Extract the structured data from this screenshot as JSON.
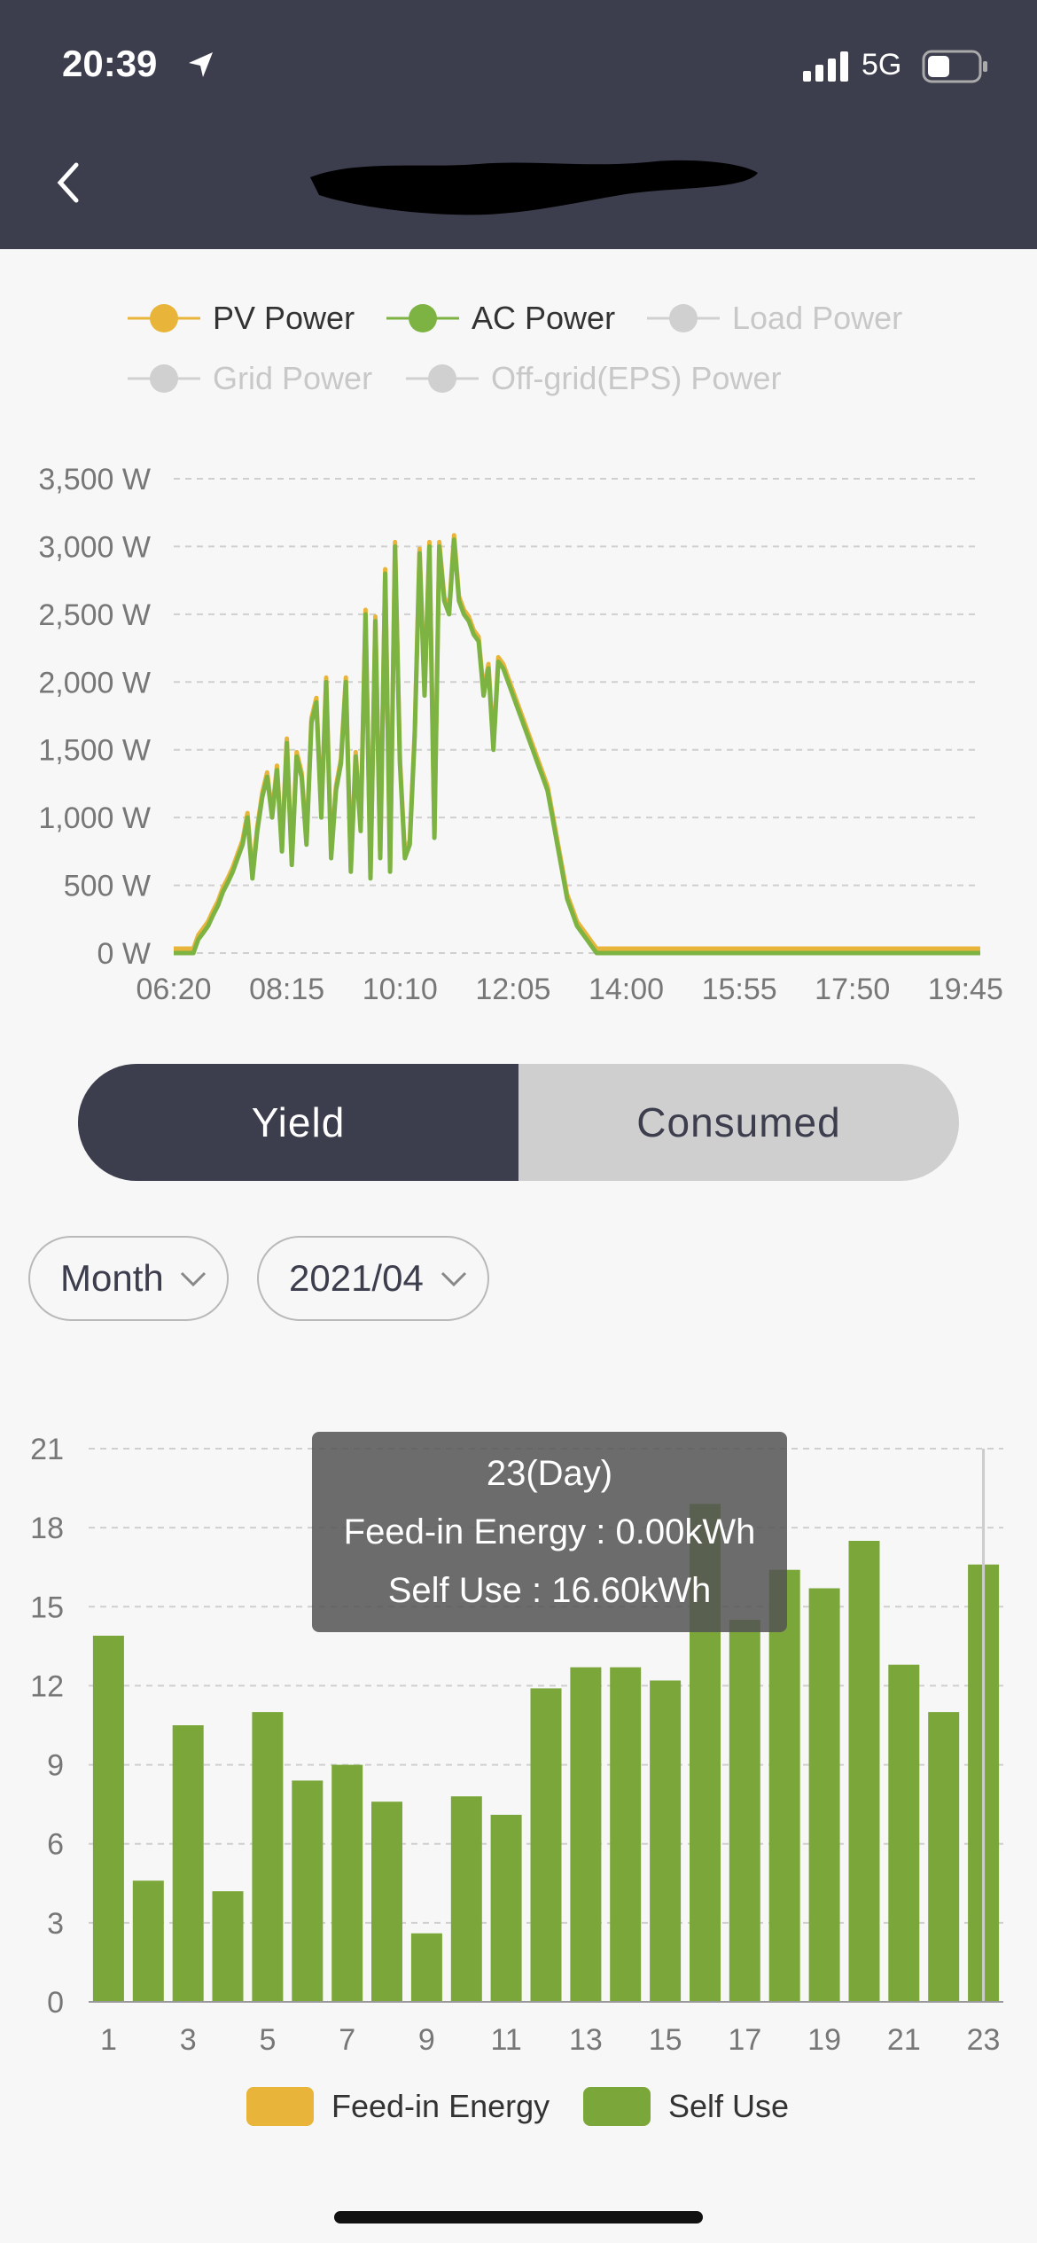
{
  "status_bar": {
    "time": "20:39",
    "network": "5G"
  },
  "nav": {
    "back_label": "<"
  },
  "power_legend": [
    {
      "label": "PV Power",
      "color": "#e8b53a",
      "active": true
    },
    {
      "label": "AC Power",
      "color": "#7cb342",
      "active": true
    },
    {
      "label": "Load Power",
      "color": "#cccccc",
      "active": false
    },
    {
      "label": "Grid Power",
      "color": "#cccccc",
      "active": false
    },
    {
      "label": "Off-grid(EPS) Power",
      "color": "#cccccc",
      "active": false
    }
  ],
  "toggle": {
    "yield_label": "Yield",
    "consumed_label": "Consumed",
    "selected": "Yield"
  },
  "filters": {
    "period": "Month",
    "date": "2021/04"
  },
  "tooltip": {
    "title": "23(Day)",
    "feed_in": "Feed-in Energy : 0.00kWh",
    "self_use": "Self Use : 16.60kWh"
  },
  "energy_legend": [
    {
      "label": "Feed-in Energy",
      "color": "#e8b53a"
    },
    {
      "label": "Self Use",
      "color": "#7ba73a"
    }
  ],
  "chart_data": [
    {
      "type": "line",
      "series_names": [
        "PV Power",
        "AC Power"
      ],
      "y_ticks": [
        "0 W",
        "500 W",
        "1,000 W",
        "1,500 W",
        "2,000 W",
        "2,500 W",
        "3,000 W",
        "3,500 W"
      ],
      "x_ticks": [
        "06:20",
        "08:15",
        "10:10",
        "12:05",
        "14:00",
        "15:55",
        "17:50",
        "19:45"
      ],
      "ylim": [
        0,
        3500
      ],
      "grid": true,
      "x_minutes_from_0620": [
        0,
        15,
        20,
        25,
        30,
        35,
        40,
        45,
        50,
        55,
        60,
        65,
        70,
        75,
        80,
        85,
        90,
        95,
        100,
        105,
        110,
        115,
        120,
        125,
        130,
        135,
        140,
        145,
        150,
        155,
        160,
        165,
        170,
        175,
        180,
        185,
        190,
        195,
        200,
        205,
        210,
        215,
        220,
        225,
        230,
        235,
        240,
        245,
        250,
        255,
        260,
        265,
        270,
        275,
        280,
        285,
        290,
        295,
        300,
        305,
        310,
        315,
        320,
        325,
        330,
        335,
        340,
        345,
        350,
        355,
        360,
        365,
        370,
        375,
        380,
        385,
        390,
        395,
        400,
        405,
        410,
        415,
        420,
        425,
        430,
        435,
        440,
        445,
        450,
        455,
        460,
        465,
        470,
        475,
        480,
        485,
        490,
        495,
        500,
        505,
        510,
        515,
        520,
        525,
        530,
        535,
        540,
        545,
        550,
        555,
        560,
        565,
        570,
        575,
        580,
        585,
        590,
        595,
        600,
        605,
        610,
        615,
        620,
        625,
        630,
        635,
        640,
        645,
        650,
        655,
        660,
        665,
        670,
        675,
        680,
        685,
        690,
        695,
        700,
        705,
        710,
        715,
        720,
        725,
        730,
        735,
        740,
        745,
        750,
        755,
        760,
        765,
        770,
        775,
        780,
        785,
        790,
        795,
        800,
        805,
        810,
        815,
        820
      ],
      "ac_power_values": [
        0,
        0,
        0,
        100,
        150,
        200,
        280,
        350,
        450,
        520,
        600,
        700,
        800,
        1000,
        550,
        900,
        1150,
        1300,
        1000,
        1350,
        750,
        1550,
        650,
        1450,
        1300,
        800,
        1700,
        1850,
        1000,
        2000,
        700,
        1200,
        1400,
        2000,
        600,
        1450,
        900,
        2500,
        550,
        2450,
        700,
        2800,
        600,
        3000,
        1400,
        700,
        800,
        1600,
        2950,
        1900,
        3000,
        850,
        3000,
        2600,
        2500,
        3050,
        2600,
        2500,
        2450,
        2350,
        2300,
        1900,
        2100,
        1500,
        2150,
        2100,
        2000,
        1900,
        1800,
        1700,
        1600,
        1500,
        1400,
        1300,
        1200,
        1000,
        800,
        600,
        400,
        300,
        200,
        150,
        100,
        50,
        0,
        0,
        0,
        0,
        0,
        0,
        0,
        0,
        0,
        0,
        0,
        0,
        0,
        0,
        0,
        0,
        0,
        0,
        0,
        0,
        0,
        0,
        0,
        0,
        0,
        0,
        0,
        0,
        0,
        0,
        0,
        0,
        0,
        0,
        0,
        0,
        0,
        0,
        0,
        0,
        0,
        0,
        0,
        0,
        0,
        0,
        0,
        0,
        0,
        0,
        0,
        0,
        0,
        0,
        0,
        0,
        0,
        0,
        0,
        0,
        0,
        0,
        0,
        0,
        0,
        0,
        0,
        0,
        0,
        0,
        0,
        0,
        0,
        0,
        0,
        0,
        0,
        0,
        0
      ]
    },
    {
      "type": "bar",
      "title": "",
      "series": [
        {
          "name": "Feed-in Energy",
          "values": [
            0,
            0,
            0,
            0,
            0,
            0,
            0,
            0,
            0,
            0,
            0,
            0,
            0,
            0,
            0,
            0,
            0,
            0,
            0,
            0,
            0,
            0,
            0
          ]
        },
        {
          "name": "Self Use",
          "values": [
            13.9,
            4.6,
            10.5,
            4.2,
            11.0,
            8.4,
            9.0,
            7.6,
            2.6,
            7.8,
            7.1,
            11.9,
            12.7,
            12.7,
            12.2,
            18.9,
            14.5,
            16.4,
            15.7,
            17.5,
            12.8,
            11.0,
            16.6
          ]
        }
      ],
      "categories": [
        1,
        2,
        3,
        4,
        5,
        6,
        7,
        8,
        9,
        10,
        11,
        12,
        13,
        14,
        15,
        16,
        17,
        18,
        19,
        20,
        21,
        22,
        23
      ],
      "x_tick_labels": [
        "1",
        "3",
        "5",
        "7",
        "9",
        "11",
        "13",
        "15",
        "17",
        "19",
        "21",
        "23"
      ],
      "y_ticks": [
        "0",
        "3",
        "6",
        "9",
        "12",
        "15",
        "18",
        "21"
      ],
      "ylim": [
        0,
        21
      ],
      "grid": true
    }
  ]
}
